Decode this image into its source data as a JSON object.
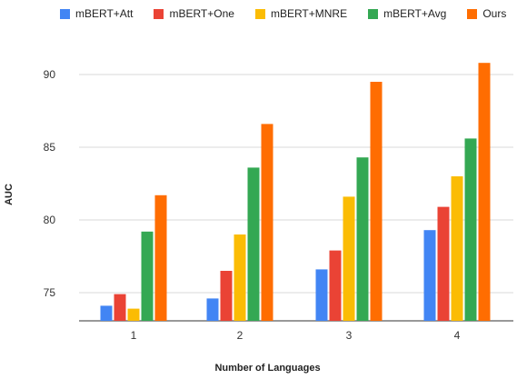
{
  "chart_data": {
    "type": "bar",
    "xlabel": "Number of Languages",
    "ylabel": "AUC",
    "categories": [
      "1",
      "2",
      "3",
      "4"
    ],
    "ylim": [
      73,
      92
    ],
    "yticks": [
      75,
      80,
      85,
      90
    ],
    "grid": "horizontal",
    "legend_position": "top",
    "series": [
      {
        "name": "mBERT+Att",
        "color": "#4285f4",
        "values": [
          74.1,
          74.6,
          76.6,
          79.3
        ]
      },
      {
        "name": "mBERT+One",
        "color": "#ea4335",
        "values": [
          74.9,
          76.5,
          77.9,
          80.9
        ]
      },
      {
        "name": "mBERT+MNRE",
        "color": "#fbbc04",
        "values": [
          73.9,
          79.0,
          81.6,
          83.0
        ]
      },
      {
        "name": "mBERT+Avg",
        "color": "#34a853",
        "values": [
          79.2,
          83.6,
          84.3,
          85.6
        ]
      },
      {
        "name": "Ours",
        "color": "#ff6d01",
        "values": [
          81.7,
          86.6,
          89.5,
          90.8
        ]
      }
    ]
  }
}
